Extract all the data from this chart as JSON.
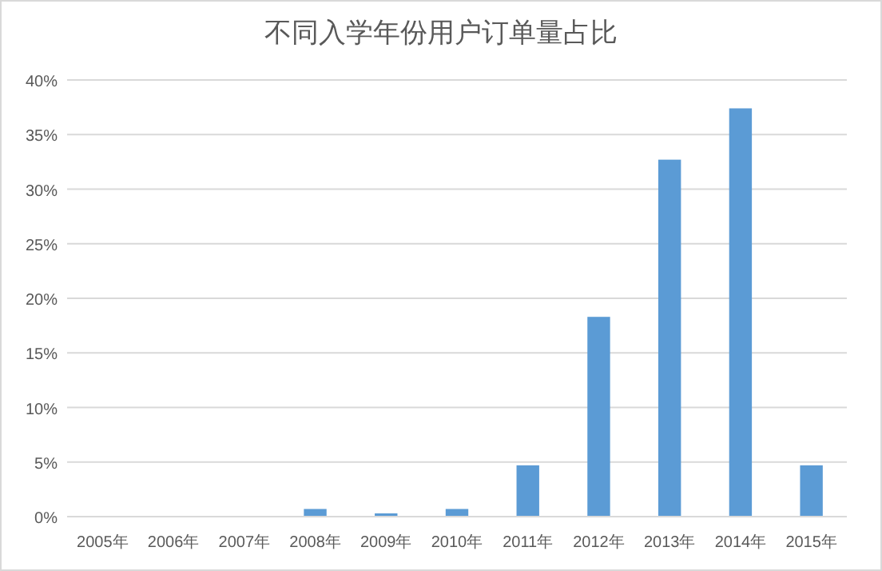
{
  "chart_data": {
    "type": "bar",
    "title": "不同入学年份用户订单量占比",
    "categories": [
      "2005年",
      "2006年",
      "2007年",
      "2008年",
      "2009年",
      "2010年",
      "2011年",
      "2012年",
      "2013年",
      "2014年",
      "2015年"
    ],
    "values": [
      0,
      0,
      0,
      0.7,
      0.3,
      0.7,
      4.7,
      18.3,
      32.7,
      37.4,
      4.7
    ],
    "color": "#5b9bd5",
    "ylim": [
      0,
      40
    ],
    "yticks": [
      {
        "value": 0,
        "label": "0%"
      },
      {
        "value": 5,
        "label": "5%"
      },
      {
        "value": 10,
        "label": "10%"
      },
      {
        "value": 15,
        "label": "15%"
      },
      {
        "value": 20,
        "label": "20%"
      },
      {
        "value": 25,
        "label": "25%"
      },
      {
        "value": 30,
        "label": "30%"
      },
      {
        "value": 35,
        "label": "35%"
      },
      {
        "value": 40,
        "label": "40%"
      }
    ],
    "grid": "y"
  }
}
